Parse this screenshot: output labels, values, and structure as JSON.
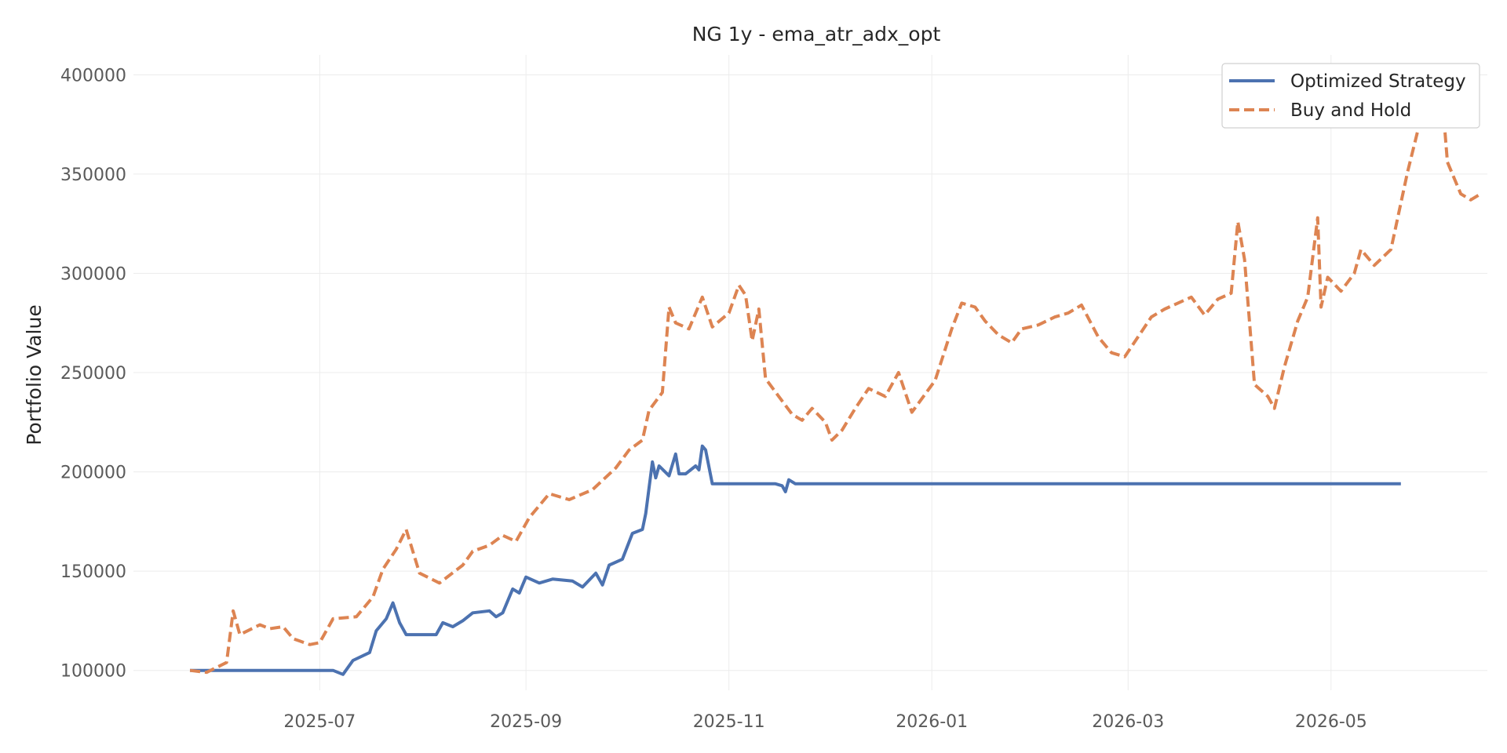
{
  "chart_data": {
    "type": "line",
    "title": "NG 1y - ema_atr_adx_opt",
    "xlabel": "",
    "ylabel": "Portfolio Value",
    "xlim": [
      "2025-05-06",
      "2026-06-17"
    ],
    "ylim": [
      90000,
      410000
    ],
    "x_ticks": [
      "2025-07",
      "2025-09",
      "2025-11",
      "2026-01",
      "2026-03",
      "2026-05"
    ],
    "y_ticks": [
      100000,
      150000,
      200000,
      250000,
      300000,
      350000,
      400000
    ],
    "grid": true,
    "legend_position": "top-right",
    "series": [
      {
        "name": "Optimized Strategy",
        "color": "#4c72b0",
        "style": "solid",
        "points": [
          [
            "2025-05-23",
            100000
          ],
          [
            "2025-06-15",
            100000
          ],
          [
            "2025-07-05",
            100000
          ],
          [
            "2025-07-08",
            98000
          ],
          [
            "2025-07-11",
            105000
          ],
          [
            "2025-07-16",
            109000
          ],
          [
            "2025-07-18",
            120000
          ],
          [
            "2025-07-21",
            126000
          ],
          [
            "2025-07-23",
            134000
          ],
          [
            "2025-07-25",
            124000
          ],
          [
            "2025-07-27",
            118000
          ],
          [
            "2025-08-05",
            118000
          ],
          [
            "2025-08-07",
            124000
          ],
          [
            "2025-08-10",
            122000
          ],
          [
            "2025-08-13",
            125000
          ],
          [
            "2025-08-16",
            129000
          ],
          [
            "2025-08-21",
            130000
          ],
          [
            "2025-08-23",
            127000
          ],
          [
            "2025-08-25",
            129000
          ],
          [
            "2025-08-28",
            141000
          ],
          [
            "2025-08-30",
            139000
          ],
          [
            "2025-09-01",
            147000
          ],
          [
            "2025-09-05",
            144000
          ],
          [
            "2025-09-09",
            146000
          ],
          [
            "2025-09-15",
            145000
          ],
          [
            "2025-09-18",
            142000
          ],
          [
            "2025-09-22",
            149000
          ],
          [
            "2025-09-24",
            143000
          ],
          [
            "2025-09-26",
            153000
          ],
          [
            "2025-09-30",
            156000
          ],
          [
            "2025-10-03",
            169000
          ],
          [
            "2025-10-06",
            171000
          ],
          [
            "2025-10-07",
            179000
          ],
          [
            "2025-10-09",
            205000
          ],
          [
            "2025-10-10",
            197000
          ],
          [
            "2025-10-11",
            203000
          ],
          [
            "2025-10-14",
            198000
          ],
          [
            "2025-10-16",
            209000
          ],
          [
            "2025-10-17",
            199000
          ],
          [
            "2025-10-19",
            199000
          ],
          [
            "2025-10-22",
            203000
          ],
          [
            "2025-10-23",
            201000
          ],
          [
            "2025-10-24",
            213000
          ],
          [
            "2025-10-25",
            211000
          ],
          [
            "2025-10-27",
            194000
          ],
          [
            "2025-11-15",
            194000
          ],
          [
            "2025-11-17",
            193000
          ],
          [
            "2025-11-18",
            190000
          ],
          [
            "2025-11-19",
            196000
          ],
          [
            "2025-11-21",
            194000
          ],
          [
            "2026-05-22",
            194000
          ]
        ]
      },
      {
        "name": "Buy and Hold",
        "color": "#dd8452",
        "style": "dashed",
        "points": [
          [
            "2025-05-23",
            100000
          ],
          [
            "2025-05-28",
            99000
          ],
          [
            "2025-06-03",
            104000
          ],
          [
            "2025-06-05",
            130000
          ],
          [
            "2025-06-07",
            118000
          ],
          [
            "2025-06-13",
            123000
          ],
          [
            "2025-06-16",
            121000
          ],
          [
            "2025-06-20",
            122000
          ],
          [
            "2025-06-23",
            116000
          ],
          [
            "2025-06-28",
            113000
          ],
          [
            "2025-07-01",
            114000
          ],
          [
            "2025-07-05",
            126000
          ],
          [
            "2025-07-12",
            127000
          ],
          [
            "2025-07-17",
            137000
          ],
          [
            "2025-07-20",
            151000
          ],
          [
            "2025-07-24",
            161000
          ],
          [
            "2025-07-27",
            171000
          ],
          [
            "2025-07-31",
            149000
          ],
          [
            "2025-08-06",
            144000
          ],
          [
            "2025-08-13",
            153000
          ],
          [
            "2025-08-16",
            160000
          ],
          [
            "2025-08-21",
            163000
          ],
          [
            "2025-08-25",
            168000
          ],
          [
            "2025-08-29",
            165000
          ],
          [
            "2025-09-02",
            177000
          ],
          [
            "2025-09-08",
            189000
          ],
          [
            "2025-09-14",
            186000
          ],
          [
            "2025-09-21",
            191000
          ],
          [
            "2025-09-28",
            202000
          ],
          [
            "2025-10-02",
            211000
          ],
          [
            "2025-10-06",
            216000
          ],
          [
            "2025-10-08",
            231000
          ],
          [
            "2025-10-12",
            240000
          ],
          [
            "2025-10-14",
            283000
          ],
          [
            "2025-10-16",
            275000
          ],
          [
            "2025-10-20",
            272000
          ],
          [
            "2025-10-24",
            288000
          ],
          [
            "2025-10-27",
            273000
          ],
          [
            "2025-11-01",
            280000
          ],
          [
            "2025-11-04",
            294000
          ],
          [
            "2025-11-06",
            289000
          ],
          [
            "2025-11-08",
            266000
          ],
          [
            "2025-11-10",
            282000
          ],
          [
            "2025-11-12",
            247000
          ],
          [
            "2025-11-16",
            238000
          ],
          [
            "2025-11-20",
            229000
          ],
          [
            "2025-11-23",
            226000
          ],
          [
            "2025-11-26",
            232000
          ],
          [
            "2025-11-30",
            225000
          ],
          [
            "2025-12-02",
            216000
          ],
          [
            "2025-12-05",
            221000
          ],
          [
            "2025-12-09",
            232000
          ],
          [
            "2025-12-13",
            242000
          ],
          [
            "2025-12-18",
            238000
          ],
          [
            "2025-12-22",
            250000
          ],
          [
            "2025-12-26",
            230000
          ],
          [
            "2026-01-02",
            246000
          ],
          [
            "2026-01-07",
            272000
          ],
          [
            "2026-01-10",
            285000
          ],
          [
            "2026-01-14",
            283000
          ],
          [
            "2026-01-17",
            276000
          ],
          [
            "2026-01-21",
            269000
          ],
          [
            "2026-01-25",
            265000
          ],
          [
            "2026-01-28",
            272000
          ],
          [
            "2026-02-02",
            274000
          ],
          [
            "2026-02-07",
            278000
          ],
          [
            "2026-02-11",
            280000
          ],
          [
            "2026-02-15",
            284000
          ],
          [
            "2026-02-20",
            268000
          ],
          [
            "2026-02-24",
            260000
          ],
          [
            "2026-02-28",
            258000
          ],
          [
            "2026-03-04",
            268000
          ],
          [
            "2026-03-08",
            278000
          ],
          [
            "2026-03-12",
            282000
          ],
          [
            "2026-03-16",
            285000
          ],
          [
            "2026-03-20",
            288000
          ],
          [
            "2026-03-24",
            279000
          ],
          [
            "2026-03-28",
            287000
          ],
          [
            "2026-04-01",
            290000
          ],
          [
            "2026-04-03",
            326000
          ],
          [
            "2026-04-05",
            307000
          ],
          [
            "2026-04-08",
            244000
          ],
          [
            "2026-04-12",
            238000
          ],
          [
            "2026-04-14",
            232000
          ],
          [
            "2026-04-17",
            253000
          ],
          [
            "2026-04-21",
            276000
          ],
          [
            "2026-04-24",
            288000
          ],
          [
            "2026-04-27",
            328000
          ],
          [
            "2026-04-28",
            283000
          ],
          [
            "2026-04-30",
            298000
          ],
          [
            "2026-05-04",
            291000
          ],
          [
            "2026-05-08",
            300000
          ],
          [
            "2026-05-10",
            312000
          ],
          [
            "2026-05-14",
            304000
          ],
          [
            "2026-05-19",
            312000
          ],
          [
            "2026-05-24",
            351000
          ],
          [
            "2026-05-28",
            378000
          ],
          [
            "2026-06-03",
            397000
          ],
          [
            "2026-06-05",
            356000
          ],
          [
            "2026-06-09",
            340000
          ],
          [
            "2026-06-12",
            337000
          ],
          [
            "2026-06-15",
            340000
          ]
        ]
      }
    ]
  }
}
